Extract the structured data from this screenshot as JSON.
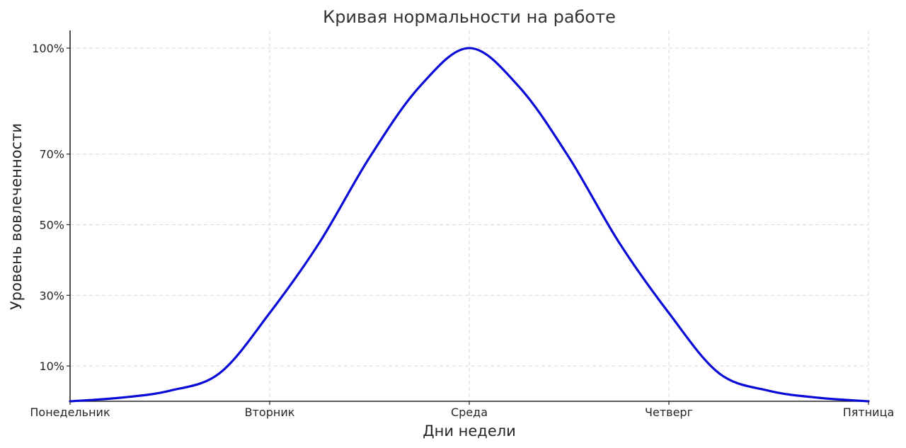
{
  "chart_data": {
    "type": "line",
    "title": "Кривая нормальности на работе",
    "xlabel": "Дни недели",
    "ylabel": "Уровень вовлеченности",
    "categories": [
      "Понедельник",
      "Вторник",
      "Среда",
      "Четверг",
      "Пятница"
    ],
    "x": [
      0,
      0.25,
      0.5,
      0.75,
      1,
      1.25,
      1.5,
      1.75,
      2,
      2.25,
      2.5,
      2.75,
      3,
      3.25,
      3.5,
      3.75,
      4
    ],
    "series": [
      {
        "values": [
          0.0,
          1.0,
          3.0,
          8.0,
          25.0,
          45.0,
          69.0,
          89.0,
          100.0,
          89.0,
          69.0,
          45.0,
          25.0,
          8.0,
          3.0,
          1.0,
          0.0
        ],
        "color": "#0a0ad6"
      }
    ],
    "yticks": [
      10,
      30,
      50,
      70,
      100
    ],
    "ytick_labels": [
      "10%",
      "30%",
      "50%",
      "70%",
      "100%"
    ],
    "xlim": [
      0,
      4
    ],
    "ylim": [
      0,
      105
    ],
    "grid": true,
    "legend": "none"
  }
}
